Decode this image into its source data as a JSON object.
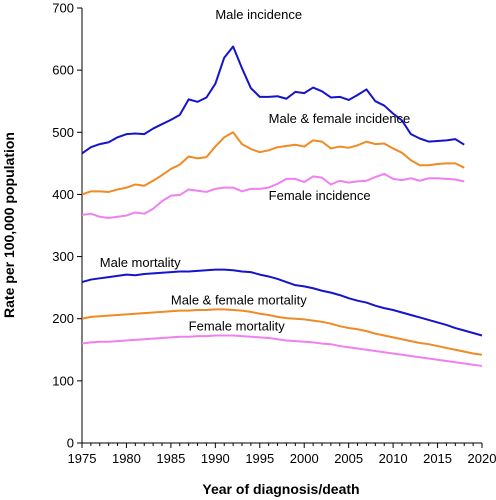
{
  "chart_data": {
    "type": "line",
    "xlabel": "Year of diagnosis/death",
    "ylabel": "Rate per 100,000 population",
    "xlim": [
      1975,
      2020
    ],
    "ylim": [
      0,
      700
    ],
    "xticks": [
      1975,
      1980,
      1985,
      1990,
      1995,
      2000,
      2005,
      2010,
      2015,
      2020
    ],
    "yticks": [
      0,
      100,
      200,
      300,
      400,
      500,
      600,
      700
    ],
    "grid": false,
    "x": [
      1975,
      1976,
      1977,
      1978,
      1979,
      1980,
      1981,
      1982,
      1983,
      1984,
      1985,
      1986,
      1987,
      1988,
      1989,
      1990,
      1991,
      1992,
      1993,
      1994,
      1995,
      1996,
      1997,
      1998,
      1999,
      2000,
      2001,
      2002,
      2003,
      2004,
      2005,
      2006,
      2007,
      2008,
      2009,
      2010,
      2011,
      2012,
      2013,
      2014,
      2015,
      2016,
      2017,
      2018,
      2019,
      2020
    ],
    "colors": {
      "male": "#1414cc",
      "combined": "#f08a24",
      "female": "#f080f0"
    },
    "series": [
      {
        "key": "male_incidence",
        "color_key": "male",
        "annotation": "Male incidence",
        "label_at": [
          1990,
          682
        ],
        "values": [
          466,
          476,
          481,
          484,
          492,
          497,
          498,
          497,
          506,
          513,
          520,
          528,
          553,
          549,
          556,
          578,
          620,
          638,
          603,
          571,
          557,
          557,
          558,
          554,
          565,
          563,
          572,
          566,
          556,
          557,
          552,
          560,
          569,
          550,
          543,
          530,
          519,
          497,
          490,
          485,
          486,
          487,
          489,
          480,
          null,
          null
        ]
      },
      {
        "key": "combined_incidence",
        "color_key": "combined",
        "annotation": "Male & female incidence",
        "label_at": [
          1996,
          515
        ],
        "values": [
          400,
          405,
          405,
          404,
          408,
          411,
          416,
          414,
          422,
          431,
          441,
          448,
          461,
          458,
          460,
          477,
          492,
          500,
          481,
          473,
          468,
          471,
          476,
          478,
          480,
          477,
          487,
          485,
          474,
          477,
          475,
          479,
          485,
          481,
          482,
          474,
          467,
          455,
          447,
          447,
          449,
          450,
          450,
          443,
          null,
          null
        ]
      },
      {
        "key": "female_incidence",
        "color_key": "female",
        "annotation": "Female incidence",
        "label_at": [
          1996,
          391
        ],
        "values": [
          367,
          369,
          364,
          362,
          364,
          366,
          371,
          369,
          377,
          389,
          398,
          399,
          408,
          406,
          404,
          409,
          411,
          411,
          405,
          409,
          409,
          411,
          417,
          425,
          425,
          420,
          429,
          427,
          416,
          422,
          419,
          421,
          422,
          428,
          433,
          425,
          423,
          426,
          422,
          426,
          426,
          425,
          424,
          421,
          null,
          null
        ]
      },
      {
        "key": "male_mortality",
        "color_key": "male",
        "annotation": "Male mortality",
        "label_at": [
          1977,
          283
        ],
        "values": [
          259,
          263,
          265,
          267,
          269,
          271,
          270,
          272,
          273,
          274,
          275,
          276,
          276,
          277,
          278,
          279,
          279,
          278,
          276,
          275,
          271,
          268,
          264,
          259,
          254,
          252,
          249,
          245,
          242,
          238,
          233,
          229,
          226,
          221,
          217,
          214,
          210,
          206,
          202,
          198,
          194,
          190,
          185,
          181,
          177,
          173
        ]
      },
      {
        "key": "combined_mortality",
        "color_key": "combined",
        "annotation": "Male & female mortality",
        "label_at": [
          1985,
          223
        ],
        "values": [
          200,
          203,
          204,
          205,
          206,
          207,
          208,
          209,
          210,
          211,
          212,
          213,
          213,
          214,
          214,
          215,
          215,
          214,
          213,
          211,
          208,
          206,
          203,
          201,
          200,
          199,
          197,
          195,
          192,
          188,
          185,
          183,
          180,
          176,
          173,
          170,
          167,
          164,
          161,
          159,
          156,
          153,
          150,
          147,
          144,
          142
        ]
      },
      {
        "key": "female_mortality",
        "color_key": "female",
        "annotation": "Female mortality",
        "label_at": [
          1987,
          181
        ],
        "values": [
          160,
          162,
          163,
          163,
          164,
          165,
          166,
          167,
          168,
          169,
          170,
          171,
          171,
          172,
          172,
          173,
          173,
          173,
          172,
          171,
          170,
          169,
          167,
          165,
          164,
          163,
          162,
          160,
          159,
          156,
          154,
          152,
          150,
          148,
          146,
          144,
          142,
          140,
          138,
          136,
          134,
          132,
          130,
          128,
          126,
          124
        ]
      }
    ]
  }
}
